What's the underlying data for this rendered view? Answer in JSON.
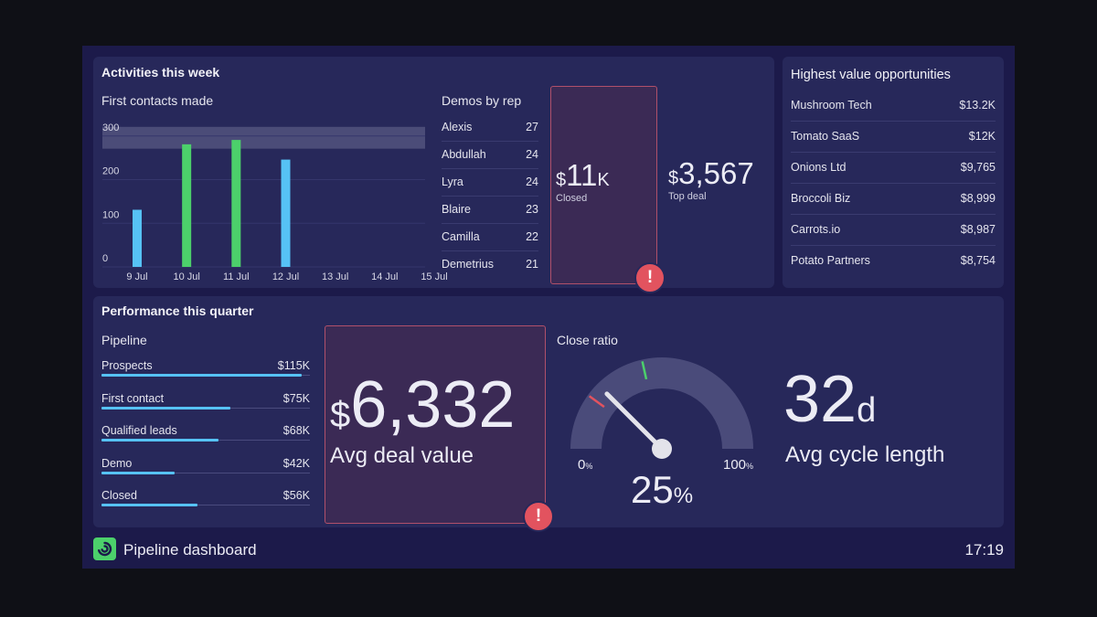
{
  "activities": {
    "title": "Activities this week",
    "first_contacts_title": "First contacts made",
    "demos_title": "Demos by rep",
    "demos": [
      {
        "name": "Alexis",
        "value": "27"
      },
      {
        "name": "Abdullah",
        "value": "24"
      },
      {
        "name": "Lyra",
        "value": "24"
      },
      {
        "name": "Blaire",
        "value": "23"
      },
      {
        "name": "Camilla",
        "value": "22"
      },
      {
        "name": "Demetrius",
        "value": "21"
      }
    ],
    "closed": {
      "currency": "$",
      "value": "11",
      "suffix": "K",
      "label": "Closed"
    },
    "top_deal": {
      "currency": "$",
      "value": "3,567",
      "label": "Top deal"
    }
  },
  "opportunities": {
    "title": "Highest value opportunities",
    "items": [
      {
        "name": "Mushroom Tech",
        "value": "$13.2K"
      },
      {
        "name": "Tomato SaaS",
        "value": "$12K"
      },
      {
        "name": "Onions Ltd",
        "value": "$9,765"
      },
      {
        "name": "Broccoli Biz",
        "value": "$8,999"
      },
      {
        "name": "Carrots.io",
        "value": "$8,987"
      },
      {
        "name": "Potato Partners",
        "value": "$8,754"
      }
    ]
  },
  "performance": {
    "title": "Performance this quarter",
    "pipeline_title": "Pipeline",
    "pipeline": [
      {
        "name": "Prospects",
        "value": "$115K",
        "fraction": 0.96
      },
      {
        "name": "First contact",
        "value": "$75K",
        "fraction": 0.62
      },
      {
        "name": "Qualified leads",
        "value": "$68K",
        "fraction": 0.56
      },
      {
        "name": "Demo",
        "value": "$42K",
        "fraction": 0.35
      },
      {
        "name": "Closed",
        "value": "$56K",
        "fraction": 0.46
      }
    ],
    "avg_deal": {
      "currency": "$",
      "value": "6,332",
      "label": "Avg deal value"
    },
    "close_ratio": {
      "title": "Close ratio",
      "value": "25",
      "unit": "%",
      "min_label": "0",
      "max_label": "100",
      "tick_unit": "%",
      "target_low": 0.2,
      "target_high": 0.43
    },
    "cycle": {
      "value": "32",
      "unit": "d",
      "label": "Avg cycle length"
    }
  },
  "footer": {
    "title": "Pipeline dashboard",
    "time": "17:19",
    "logo_icon": "swirl-logo-icon"
  },
  "alerts": {
    "symbol": "!"
  },
  "colors": {
    "background": "#0f1016",
    "frame": "#1c1a4a",
    "panel": "#27285a",
    "blue_bar": "#56c2f5",
    "green_bar": "#4cd06b",
    "alert": "#e2535f",
    "target_band": "#4b4c78"
  },
  "chart_data": {
    "type": "bar",
    "categories": [
      "9 Jul",
      "10 Jul",
      "11 Jul",
      "12 Jul",
      "13 Jul",
      "14 Jul",
      "15 Jul"
    ],
    "values": [
      110,
      260,
      270,
      225,
      null,
      null,
      null
    ],
    "bar_colors": [
      "#56c2f5",
      "#4cd06b",
      "#4cd06b",
      "#56c2f5",
      null,
      null,
      null
    ],
    "yticks": [
      0,
      100,
      200,
      300
    ],
    "ylim": [
      0,
      310
    ],
    "target_band": [
      250,
      300
    ],
    "title": "First contacts made",
    "xlabel": "",
    "ylabel": "",
    "grid": true
  }
}
